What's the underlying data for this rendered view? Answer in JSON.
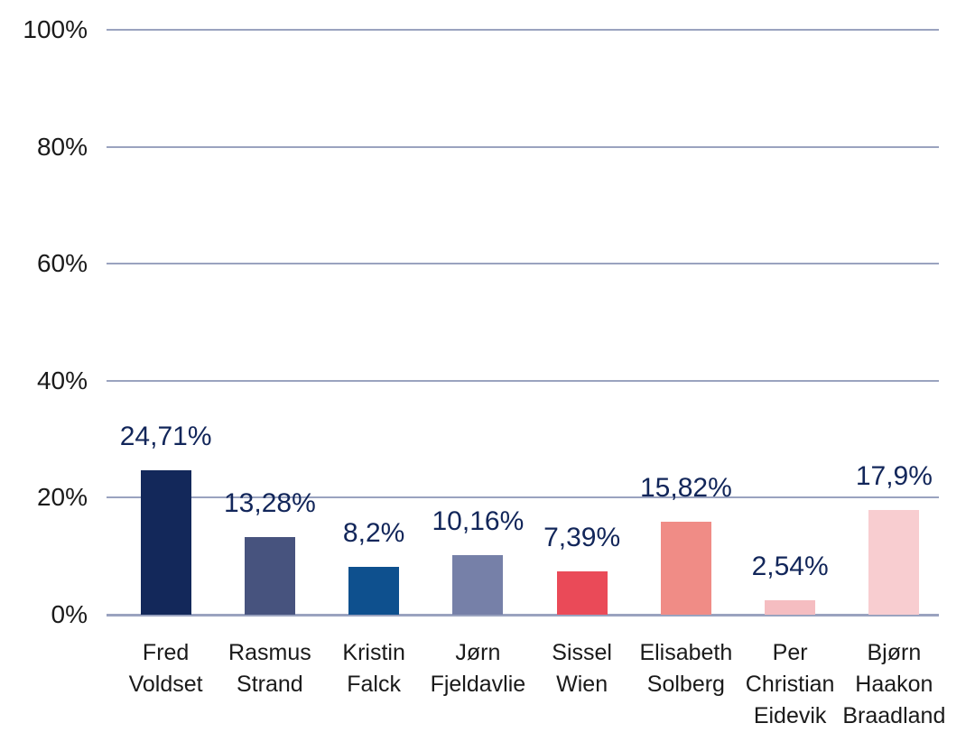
{
  "chart_data": {
    "type": "bar",
    "title": "",
    "xlabel": "",
    "ylabel": "",
    "categories": [
      [
        "Fred",
        "Voldset"
      ],
      [
        "Rasmus",
        "Strand"
      ],
      [
        "Kristin",
        "Falck"
      ],
      [
        "Jørn",
        "Fjeldavlie"
      ],
      [
        "Sissel",
        "Wien"
      ],
      [
        "Elisabeth",
        "Solberg"
      ],
      [
        "Per",
        "Christian",
        "Eidevik"
      ],
      [
        "Bjørn",
        "Haakon",
        "Braadland"
      ]
    ],
    "values": [
      24.71,
      13.28,
      8.2,
      10.16,
      7.39,
      15.82,
      2.54,
      17.9
    ],
    "value_labels": [
      "24,71%",
      "13,28%",
      "8,2%",
      "10,16%",
      "7,39%",
      "15,82%",
      "2,54%",
      "17,9%"
    ],
    "bar_colors": [
      "#13285a",
      "#47537e",
      "#0e508e",
      "#7680a8",
      "#ea4a58",
      "#f08c86",
      "#f5bdc1",
      "#f8cdd0"
    ],
    "ylim": [
      0,
      100
    ],
    "yticks": [
      0,
      20,
      40,
      60,
      80,
      100
    ],
    "ytick_suffix": "%",
    "grid": true,
    "legend": false,
    "gridline_color": "#9aa3bf",
    "axis_color": "#9aa3bf",
    "value_label_color": "#12265a",
    "tick_label_color": "#1a1a1a",
    "category_label_color": "#1a1a1a",
    "background_color": "#ffffff"
  }
}
